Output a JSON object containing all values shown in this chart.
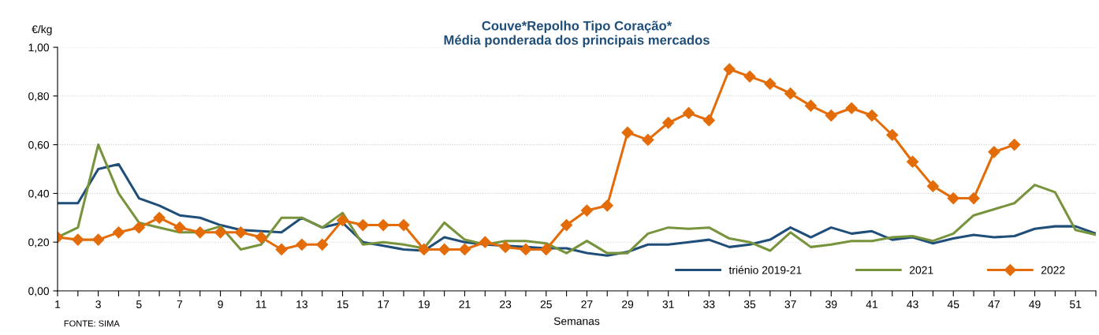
{
  "chart_data": {
    "type": "line",
    "title": "Couve*Repolho Tipo Coração*\nMédia ponderada dos principais mercados",
    "ylabel": "€/kg",
    "xlabel": "Semanas",
    "annotations": [
      "FONTE: SIMA"
    ],
    "categories": [
      "1",
      null,
      "3",
      null,
      "5",
      null,
      "7",
      null,
      "9",
      null,
      "11",
      null,
      "13",
      null,
      "15",
      null,
      "17",
      null,
      "19",
      null,
      "21",
      null,
      "23",
      null,
      "25",
      null,
      "27",
      null,
      "29",
      null,
      "31",
      null,
      "33",
      null,
      "35",
      null,
      "37",
      null,
      "39",
      null,
      "41",
      null,
      "43",
      null,
      "45",
      null,
      "47",
      null,
      "49",
      null,
      "51",
      null
    ],
    "ylim": [
      0,
      1
    ],
    "yticks": [
      {
        "value": 0,
        "label": "0,00"
      },
      {
        "value": 0.2,
        "label": "0,20"
      },
      {
        "value": 0.4,
        "label": "0,40"
      },
      {
        "value": 0.6,
        "label": "0,60"
      },
      {
        "value": 0.8,
        "label": "0,80"
      },
      {
        "value": 1,
        "label": "1,00"
      }
    ],
    "grid": "y",
    "legend": "bottom right",
    "series": [
      {
        "name": "triénio 2019-21",
        "color": "#1f4e79",
        "marker": "none",
        "values": [
          0.36,
          0.36,
          0.5,
          0.52,
          0.38,
          0.35,
          0.31,
          0.3,
          0.27,
          0.25,
          0.245,
          0.24,
          0.3,
          0.26,
          0.28,
          0.2,
          0.185,
          0.17,
          0.165,
          0.22,
          0.2,
          0.19,
          0.185,
          0.18,
          0.175,
          0.175,
          0.155,
          0.145,
          0.16,
          0.19,
          0.19,
          0.2,
          0.21,
          0.18,
          0.19,
          0.21,
          0.26,
          0.22,
          0.26,
          0.235,
          0.245,
          0.21,
          0.22,
          0.195,
          0.215,
          0.23,
          0.22,
          0.225,
          0.255,
          0.265,
          0.265,
          0.235
        ]
      },
      {
        "name": "2021",
        "color": "#77933c",
        "marker": "none",
        "values": [
          0.22,
          0.26,
          0.6,
          0.4,
          0.28,
          0.26,
          0.24,
          0.24,
          0.265,
          0.17,
          0.19,
          0.3,
          0.3,
          0.26,
          0.32,
          0.19,
          0.2,
          0.19,
          0.175,
          0.28,
          0.21,
          0.19,
          0.205,
          0.205,
          0.195,
          0.155,
          0.205,
          0.155,
          0.155,
          0.235,
          0.26,
          0.255,
          0.26,
          0.215,
          0.2,
          0.165,
          0.24,
          0.18,
          0.19,
          0.205,
          0.205,
          0.22,
          0.225,
          0.205,
          0.235,
          0.31,
          0.335,
          0.36,
          0.435,
          0.405,
          0.25,
          0.23
        ]
      },
      {
        "name": "2022",
        "color": "#e36c09",
        "marker": "diamond",
        "values": [
          0.22,
          0.21,
          0.21,
          0.24,
          0.26,
          0.3,
          0.26,
          0.24,
          0.24,
          0.24,
          0.22,
          0.17,
          0.19,
          0.19,
          0.29,
          0.27,
          0.27,
          0.27,
          0.17,
          0.17,
          0.17,
          0.2,
          0.18,
          0.17,
          0.17,
          0.27,
          0.33,
          0.35,
          0.65,
          0.62,
          0.69,
          0.73,
          0.7,
          0.91,
          0.88,
          0.85,
          0.81,
          0.76,
          0.72,
          0.75,
          0.72,
          0.64,
          0.53,
          0.43,
          0.38,
          0.38,
          0.57,
          0.6,
          null,
          null,
          null,
          null
        ]
      }
    ]
  }
}
